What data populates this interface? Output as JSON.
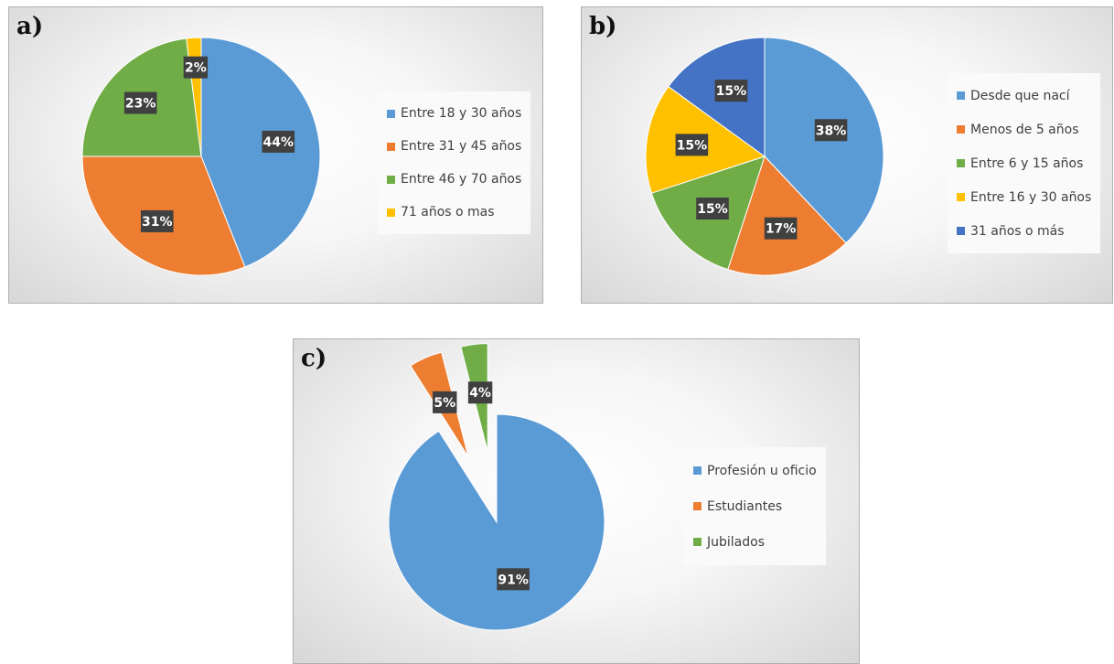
{
  "panels": [
    {
      "id": "a",
      "letter": "a)"
    },
    {
      "id": "b",
      "letter": "b)"
    },
    {
      "id": "c",
      "letter": "c)"
    }
  ],
  "chart_data": [
    {
      "panel": "a)",
      "type": "pie",
      "categories": [
        "Entre 18 y 30 años",
        "Entre 31 y 45 años",
        "Entre 46 y 70 años",
        "71 años o mas"
      ],
      "values": [
        44,
        31,
        23,
        2
      ],
      "data_labels": [
        "44%",
        "31%",
        "23%",
        "2%"
      ],
      "colors": [
        "#5b9bd5",
        "#ed7d31",
        "#70ad47",
        "#ffc000"
      ],
      "legend_position": "right",
      "exploded": false
    },
    {
      "panel": "b)",
      "type": "pie",
      "categories": [
        "Desde que nací",
        "Menos de 5 años",
        "Entre 6 y 15 años",
        "Entre 16 y 30 años",
        "31 años o más"
      ],
      "values": [
        38,
        17,
        15,
        15,
        15
      ],
      "data_labels": [
        "38%",
        "17%",
        "15%",
        "15%",
        "15%"
      ],
      "colors": [
        "#5b9bd5",
        "#ed7d31",
        "#70ad47",
        "#ffc000",
        "#4472c4"
      ],
      "legend_position": "right",
      "exploded": false
    },
    {
      "panel": "c)",
      "type": "pie",
      "categories": [
        "Profesión u oficio",
        "Estudiantes",
        "Jubilados"
      ],
      "values": [
        91,
        5,
        4
      ],
      "data_labels": [
        "91%",
        "5%",
        "4%"
      ],
      "colors": [
        "#5b9bd5",
        "#ed7d31",
        "#70ad47"
      ],
      "legend_position": "right",
      "exploded": true
    }
  ]
}
